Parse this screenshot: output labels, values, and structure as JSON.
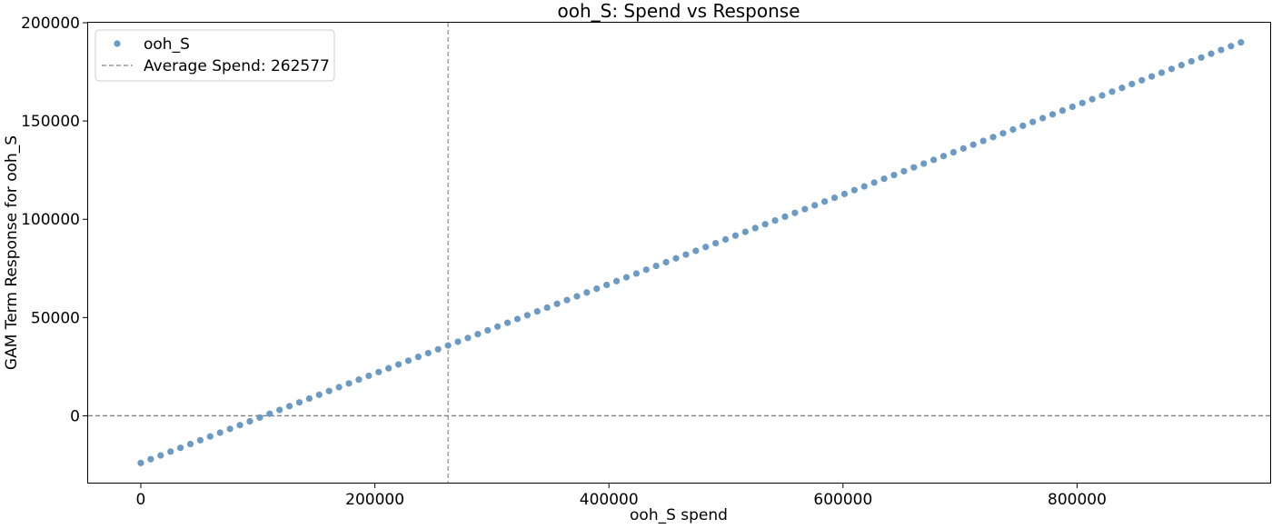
{
  "chart_data": {
    "type": "scatter",
    "title": "ooh_S: Spend vs Response",
    "xlabel": "ooh_S spend",
    "ylabel": "GAM Term Response for ooh_S",
    "xlim": [
      -45000,
      965000
    ],
    "ylim": [
      -34000,
      200000
    ],
    "xticks": [
      0,
      200000,
      400000,
      600000,
      800000
    ],
    "xtick_labels": [
      "0",
      "200000",
      "400000",
      "600000",
      "800000"
    ],
    "yticks": [
      0,
      50000,
      100000,
      150000,
      200000
    ],
    "ytick_labels": [
      "0",
      "50000",
      "100000",
      "150000",
      "200000"
    ],
    "grid": false,
    "legend_position": "top-left",
    "series": [
      {
        "name": "ooh_S",
        "color": "#6b9ac4",
        "marker": "circle",
        "linear_fit": {
          "x_start": 0,
          "x_end": 940000,
          "y_at_x_start": -24000,
          "y_at_x_end": 190000
        },
        "point_count": 112
      }
    ],
    "reference_lines": [
      {
        "orientation": "vertical",
        "value": 262577,
        "style": "dashed",
        "color": "#999999",
        "label": "Average Spend: 262577"
      },
      {
        "orientation": "horizontal",
        "value": 0,
        "style": "dashed",
        "color": "#7f7f7f"
      }
    ]
  }
}
